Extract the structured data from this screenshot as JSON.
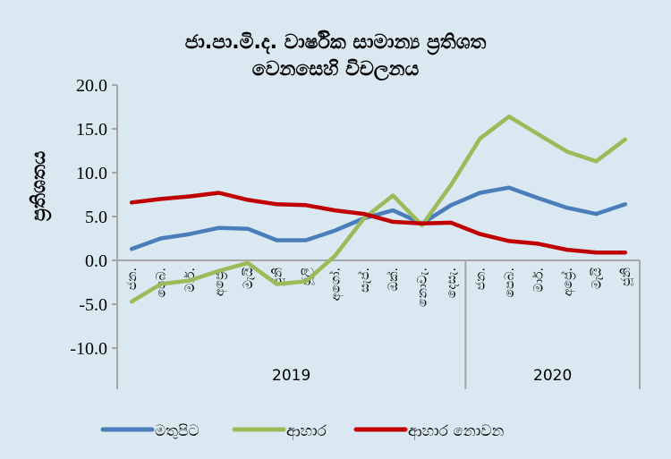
{
  "chart_data": {
    "type": "line",
    "title": [
      "ජා.පා.මි.ද. වාර්ෂික සාමාන්‍ය ප්‍රතිශත",
      "වෙනසෙහි විචලනය"
    ],
    "xlabel": "",
    "ylabel": "ප්‍රතිශතය",
    "ylim": [
      -10,
      20
    ],
    "yticks": [
      20,
      15,
      10,
      5,
      0,
      -5,
      -10
    ],
    "ytick_labels": [
      "20.0",
      "15.0",
      "10.0",
      "5.0",
      "0.0",
      "-5.0",
      "-10.0"
    ],
    "grid": false,
    "legend_position": "bottom",
    "categories": [
      "ජන.",
      "පෙබ.",
      "මාර්.",
      "අප්‍රේ.",
      "මැයි",
      "ජූනි",
      "ජූලි",
      "අගෝ.",
      "සැප්.",
      "ඔක්.",
      "නොවැ.",
      "දෙසැ.",
      "ජන.",
      "පෙබ.",
      "මාර්.",
      "අප්‍රේ.",
      "මැයි",
      "ජූනි"
    ],
    "groups": [
      {
        "label": "2019",
        "count": 12
      },
      {
        "label": "2020",
        "count": 6
      }
    ],
    "series": [
      {
        "name": "මතුපිට",
        "color": "#4a7ebb",
        "values": [
          1.3,
          2.5,
          3.0,
          3.7,
          3.6,
          2.3,
          2.3,
          3.4,
          4.8,
          5.7,
          4.2,
          6.3,
          7.7,
          8.3,
          7.1,
          6.0,
          5.3,
          6.4
        ]
      },
      {
        "name": "ආහාර",
        "color": "#9bbb59",
        "values": [
          -4.7,
          -2.7,
          -2.3,
          -1.2,
          -0.3,
          -2.7,
          -2.4,
          0.5,
          4.8,
          7.4,
          4.0,
          8.6,
          13.9,
          16.4,
          14.4,
          12.4,
          11.3,
          13.8
        ]
      },
      {
        "name": "ආහාර නොවන",
        "color": "#c00000",
        "values": [
          6.6,
          7.0,
          7.3,
          7.7,
          6.9,
          6.4,
          6.3,
          5.7,
          5.3,
          4.4,
          4.2,
          4.3,
          3.0,
          2.2,
          1.9,
          1.2,
          0.9,
          0.9
        ]
      }
    ]
  }
}
